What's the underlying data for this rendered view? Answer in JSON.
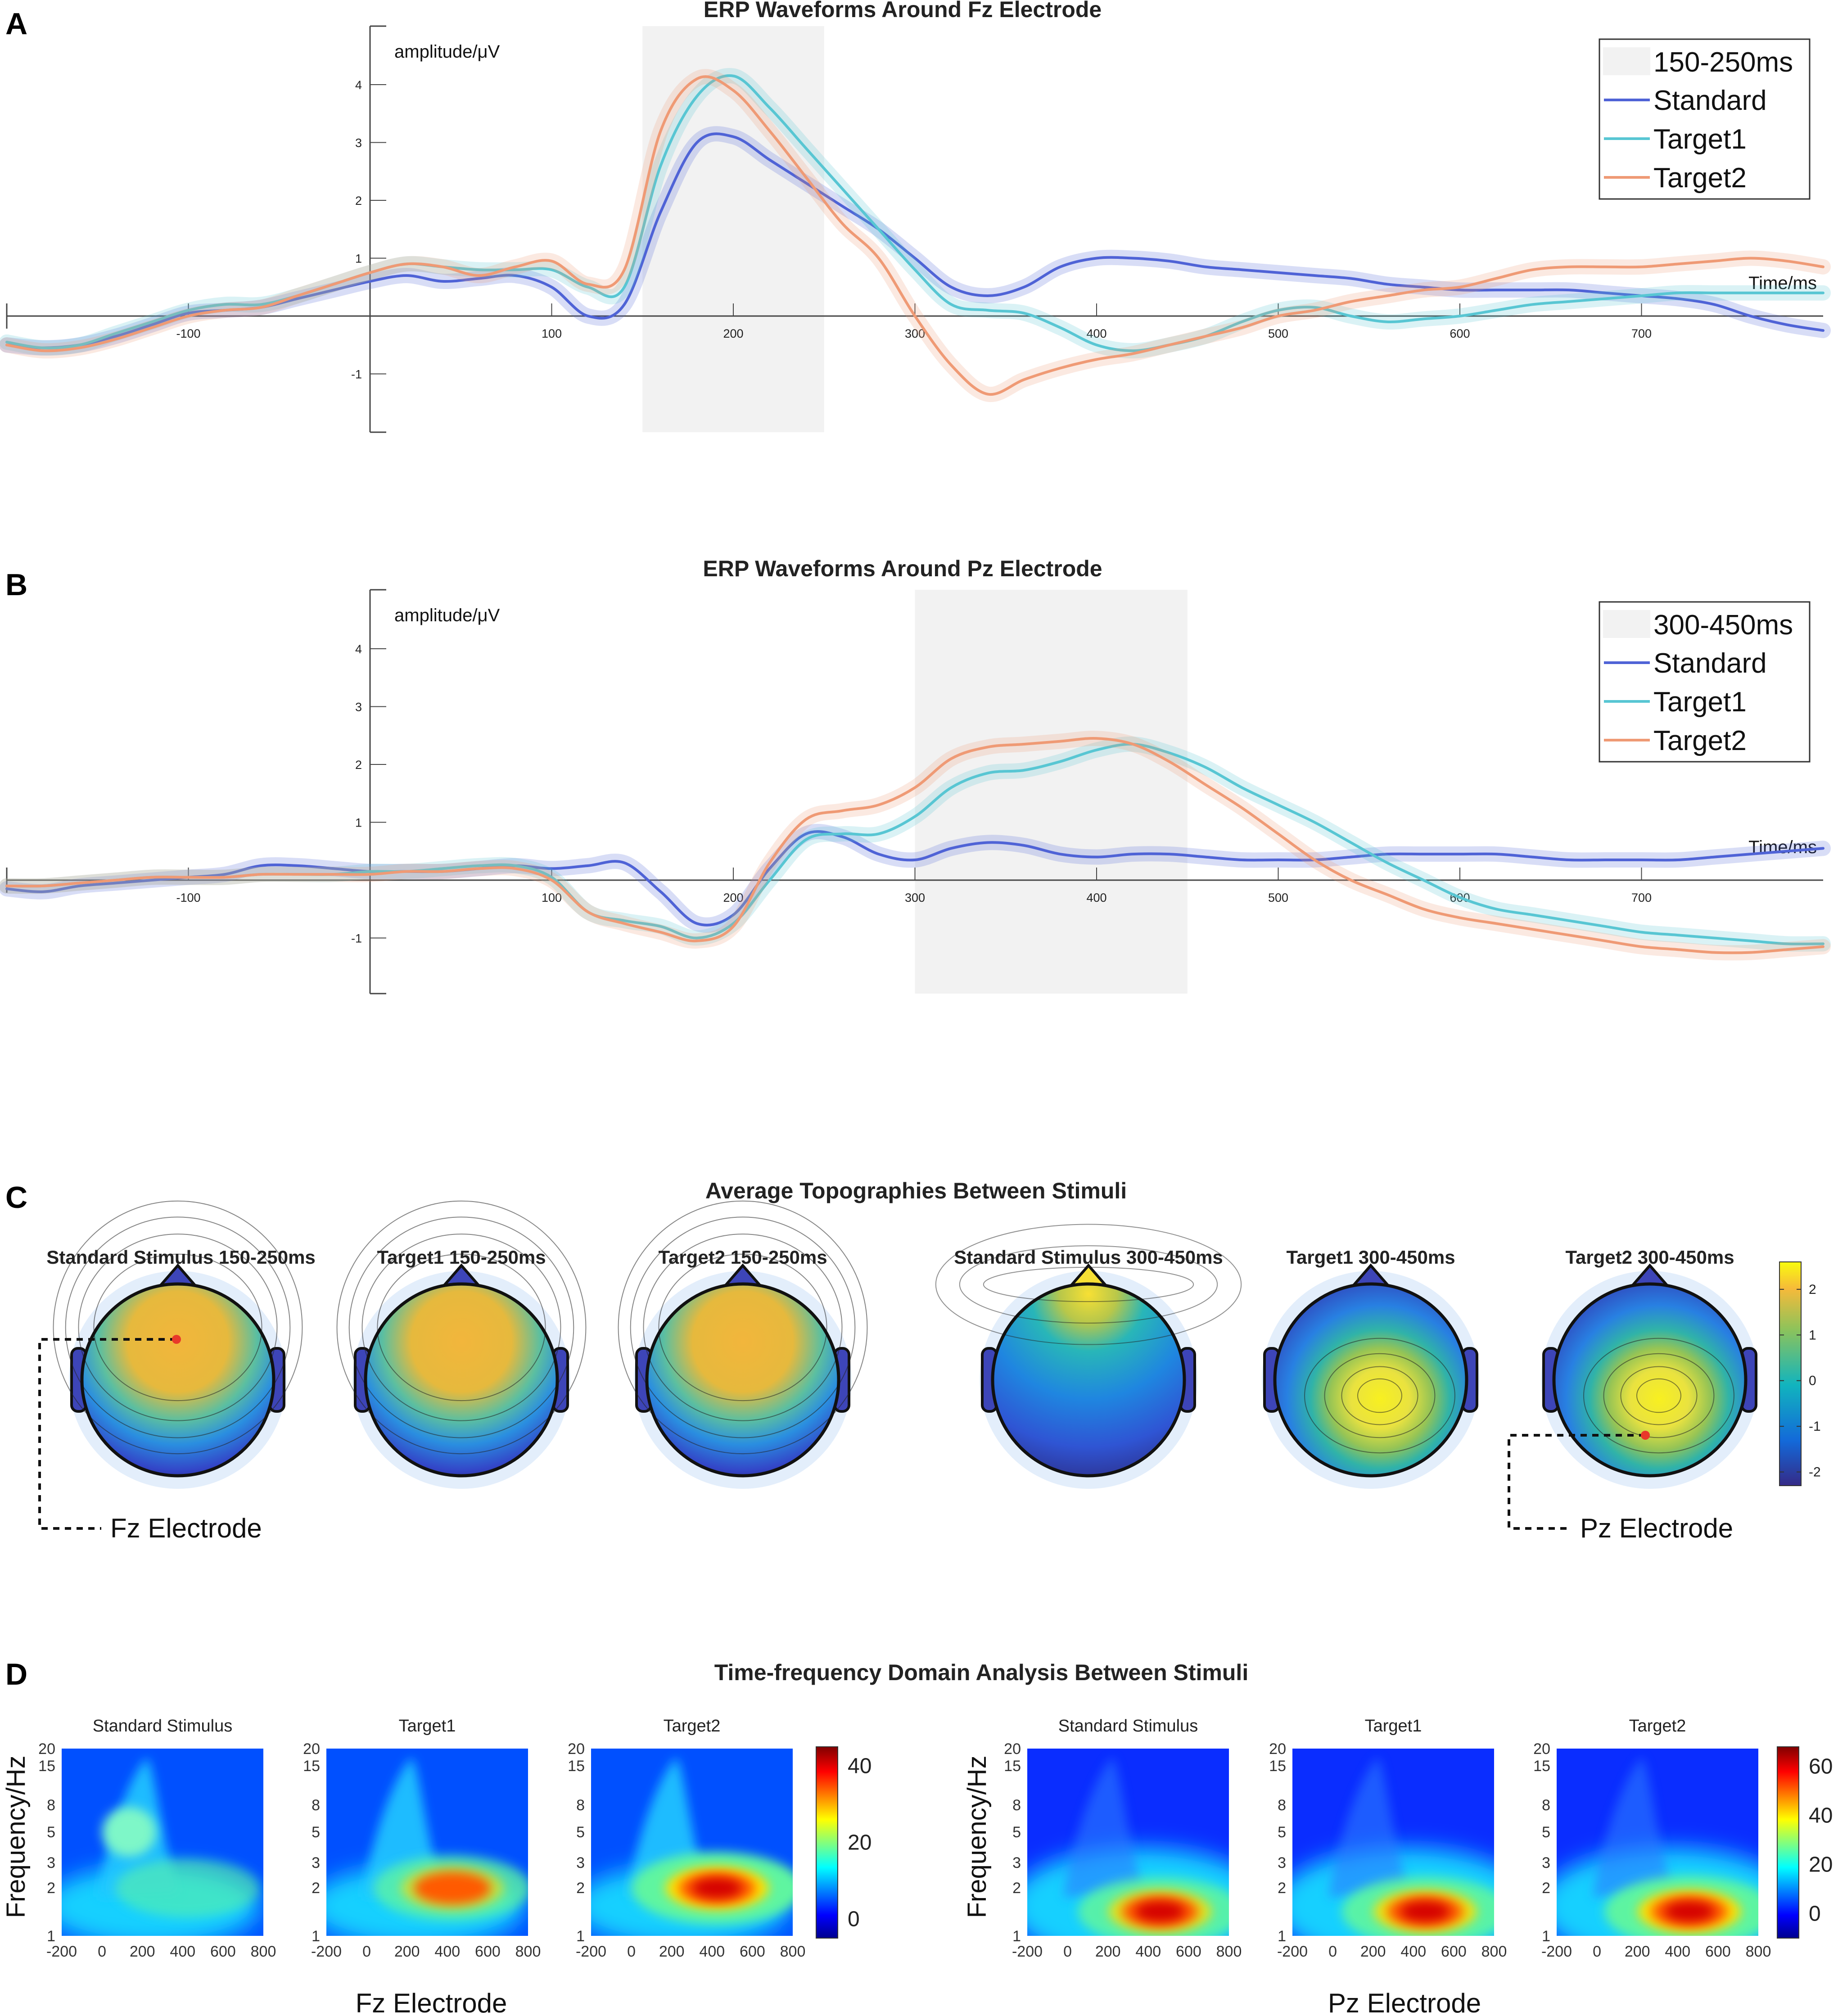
{
  "panels": {
    "A": {
      "letter": "A",
      "title": "ERP Waveforms Around Fz Electrode"
    },
    "B": {
      "letter": "B",
      "title": "ERP Waveforms Around Pz Electrode"
    },
    "C": {
      "letter": "C",
      "title": "Average Topographies Between Stimuli",
      "left_electrode": "Fz Electrode",
      "right_electrode": "Pz Electrode"
    },
    "D": {
      "letter": "D",
      "title": "Time-frequency Domain Analysis Between Stimuli",
      "ylabel": "Frequency/Hz",
      "left_electrode": "Fz Electrode",
      "right_electrode": "Pz Electrode"
    }
  },
  "colors": {
    "standard": "#4f63d6",
    "target1": "#58c6d3",
    "target2": "#ef9a75",
    "window": "#f2f2f2"
  },
  "chart_data": [
    {
      "id": "A",
      "type": "line",
      "title": "ERP Waveforms Around Fz Electrode",
      "xlabel": "Time/ms",
      "ylabel": "amplitude/μV",
      "xlim": [
        -200,
        800
      ],
      "ylim": [
        -2,
        5
      ],
      "xticks": [
        -100,
        100,
        200,
        300,
        400,
        500,
        600,
        700
      ],
      "yticks": [
        -1,
        1,
        2,
        3,
        4
      ],
      "highlight": {
        "label": "150-250ms",
        "from": 150,
        "to": 250
      },
      "x": [
        -200,
        -180,
        -160,
        -140,
        -120,
        -100,
        -80,
        -60,
        -40,
        -20,
        0,
        20,
        40,
        60,
        80,
        100,
        120,
        140,
        160,
        180,
        200,
        220,
        240,
        260,
        280,
        300,
        320,
        340,
        360,
        380,
        400,
        420,
        440,
        460,
        480,
        500,
        520,
        540,
        560,
        580,
        600,
        620,
        640,
        660,
        680,
        700,
        720,
        740,
        760,
        780,
        800
      ],
      "series": [
        {
          "name": "Standard",
          "key": "standard",
          "values": [
            -0.5,
            -0.55,
            -0.5,
            -0.35,
            -0.15,
            0.05,
            0.1,
            0.15,
            0.3,
            0.45,
            0.6,
            0.7,
            0.6,
            0.65,
            0.7,
            0.5,
            0.0,
            0.2,
            1.8,
            3.0,
            3.1,
            2.7,
            2.3,
            1.9,
            1.5,
            1.0,
            0.5,
            0.35,
            0.5,
            0.85,
            1.0,
            1.0,
            0.95,
            0.85,
            0.8,
            0.75,
            0.7,
            0.65,
            0.55,
            0.5,
            0.45,
            0.45,
            0.45,
            0.45,
            0.4,
            0.35,
            0.3,
            0.2,
            0.0,
            -0.15,
            -0.25
          ]
        },
        {
          "name": "Target1",
          "key": "target1",
          "values": [
            -0.45,
            -0.55,
            -0.5,
            -0.3,
            -0.1,
            0.1,
            0.2,
            0.2,
            0.35,
            0.55,
            0.75,
            0.9,
            0.85,
            0.8,
            0.8,
            0.8,
            0.5,
            0.5,
            2.6,
            3.8,
            4.15,
            3.6,
            2.9,
            2.2,
            1.5,
            0.8,
            0.2,
            0.1,
            0.05,
            -0.2,
            -0.5,
            -0.6,
            -0.5,
            -0.35,
            -0.1,
            0.1,
            0.15,
            0.0,
            -0.1,
            -0.05,
            0.0,
            0.1,
            0.2,
            0.25,
            0.3,
            0.35,
            0.4,
            0.4,
            0.4,
            0.4,
            0.4
          ]
        },
        {
          "name": "Target2",
          "key": "target2",
          "values": [
            -0.5,
            -0.6,
            -0.55,
            -0.4,
            -0.2,
            0.0,
            0.1,
            0.15,
            0.35,
            0.55,
            0.75,
            0.9,
            0.85,
            0.7,
            0.85,
            0.95,
            0.55,
            0.8,
            3.2,
            4.1,
            3.9,
            3.2,
            2.4,
            1.6,
            1.0,
            0.0,
            -0.85,
            -1.35,
            -1.1,
            -0.9,
            -0.75,
            -0.65,
            -0.5,
            -0.35,
            -0.2,
            0.0,
            0.1,
            0.25,
            0.35,
            0.45,
            0.5,
            0.65,
            0.8,
            0.85,
            0.85,
            0.85,
            0.9,
            0.95,
            1.0,
            0.95,
            0.85
          ]
        }
      ]
    },
    {
      "id": "B",
      "type": "line",
      "title": "ERP Waveforms Around Pz Electrode",
      "xlabel": "Time/ms",
      "ylabel": "amplitude/μV",
      "xlim": [
        -200,
        800
      ],
      "ylim": [
        -2,
        5
      ],
      "xticks": [
        -100,
        100,
        200,
        300,
        400,
        500,
        600,
        700
      ],
      "yticks": [
        -1,
        1,
        2,
        3,
        4
      ],
      "highlight": {
        "label": "300-450ms",
        "from": 300,
        "to": 450
      },
      "x": [
        -200,
        -180,
        -160,
        -140,
        -120,
        -100,
        -80,
        -60,
        -40,
        -20,
        0,
        20,
        40,
        60,
        80,
        100,
        120,
        140,
        160,
        180,
        200,
        220,
        240,
        260,
        280,
        300,
        320,
        340,
        360,
        380,
        400,
        420,
        440,
        460,
        480,
        500,
        520,
        540,
        560,
        580,
        600,
        620,
        640,
        660,
        680,
        700,
        720,
        740,
        760,
        780,
        800
      ],
      "series": [
        {
          "name": "Standard",
          "key": "standard",
          "values": [
            -0.15,
            -0.2,
            -0.1,
            -0.05,
            0.0,
            0.05,
            0.1,
            0.25,
            0.25,
            0.2,
            0.15,
            0.15,
            0.15,
            0.2,
            0.25,
            0.2,
            0.25,
            0.3,
            -0.2,
            -0.75,
            -0.6,
            0.2,
            0.8,
            0.75,
            0.45,
            0.35,
            0.55,
            0.65,
            0.6,
            0.45,
            0.4,
            0.45,
            0.45,
            0.4,
            0.35,
            0.35,
            0.35,
            0.4,
            0.45,
            0.45,
            0.45,
            0.45,
            0.4,
            0.35,
            0.35,
            0.35,
            0.35,
            0.4,
            0.45,
            0.5,
            0.55
          ]
        },
        {
          "name": "Target1",
          "key": "target1",
          "values": [
            -0.1,
            -0.1,
            -0.05,
            0.0,
            0.05,
            0.05,
            0.05,
            0.1,
            0.1,
            0.1,
            0.15,
            0.15,
            0.2,
            0.25,
            0.25,
            0.05,
            -0.55,
            -0.7,
            -0.8,
            -1.0,
            -0.75,
            0.0,
            0.7,
            0.8,
            0.8,
            1.1,
            1.6,
            1.85,
            1.9,
            2.05,
            2.25,
            2.35,
            2.2,
            1.95,
            1.6,
            1.3,
            1.0,
            0.65,
            0.3,
            0.0,
            -0.3,
            -0.5,
            -0.6,
            -0.7,
            -0.8,
            -0.9,
            -0.95,
            -1.0,
            -1.05,
            -1.1,
            -1.1
          ]
        },
        {
          "name": "Target2",
          "key": "target2",
          "values": [
            -0.1,
            -0.1,
            -0.05,
            0.0,
            0.05,
            0.05,
            0.05,
            0.1,
            0.1,
            0.1,
            0.1,
            0.15,
            0.15,
            0.2,
            0.2,
            0.0,
            -0.55,
            -0.75,
            -0.9,
            -1.05,
            -0.8,
            0.3,
            1.05,
            1.2,
            1.3,
            1.6,
            2.1,
            2.3,
            2.35,
            2.4,
            2.45,
            2.35,
            2.05,
            1.65,
            1.25,
            0.8,
            0.35,
            0.0,
            -0.25,
            -0.5,
            -0.65,
            -0.75,
            -0.85,
            -0.95,
            -1.05,
            -1.15,
            -1.2,
            -1.25,
            -1.25,
            -1.2,
            -1.15
          ]
        }
      ]
    },
    {
      "id": "C",
      "type": "heatmap",
      "title": "Average Topographies Between Stimuli",
      "maps": [
        {
          "label": "Standard Stimulus 150-250ms",
          "electrode": "Fz"
        },
        {
          "label": "Target1 150-250ms",
          "electrode": ""
        },
        {
          "label": "Target2 150-250ms",
          "electrode": ""
        },
        {
          "label": "Standard Stimulus 300-450ms",
          "electrode": ""
        },
        {
          "label": "Target1 300-450ms",
          "electrode": ""
        },
        {
          "label": "Target2 300-450ms",
          "electrode": "Pz"
        }
      ],
      "colorbar": {
        "range": [
          -2.3,
          2.6
        ],
        "ticks": [
          2,
          1,
          0,
          -1,
          -2
        ]
      }
    },
    {
      "id": "D",
      "type": "heatmap",
      "title": "Time-frequency Domain Analysis Between Stimuli",
      "ylabel": "Frequency/Hz",
      "xticks": [
        -200,
        0,
        200,
        400,
        600,
        800
      ],
      "yticks": [
        1,
        2,
        3,
        5,
        8,
        15,
        20
      ],
      "groups": [
        {
          "electrode": "Fz Electrode",
          "colorbar": {
            "range": [
              -5,
              45
            ],
            "ticks": [
              40,
              20,
              0
            ]
          },
          "maps": [
            {
              "label": "Standard Stimulus",
              "peak": 12
            },
            {
              "label": "Target1",
              "peak": 28
            },
            {
              "label": "Target2",
              "peak": 45
            }
          ]
        },
        {
          "electrode": "Pz Electrode",
          "colorbar": {
            "range": [
              -10,
              68
            ],
            "ticks": [
              60,
              40,
              20,
              0
            ]
          },
          "maps": [
            {
              "label": "Standard Stimulus",
              "peak": 55
            },
            {
              "label": "Target1",
              "peak": 60
            },
            {
              "label": "Target2",
              "peak": 66
            }
          ]
        }
      ]
    }
  ]
}
